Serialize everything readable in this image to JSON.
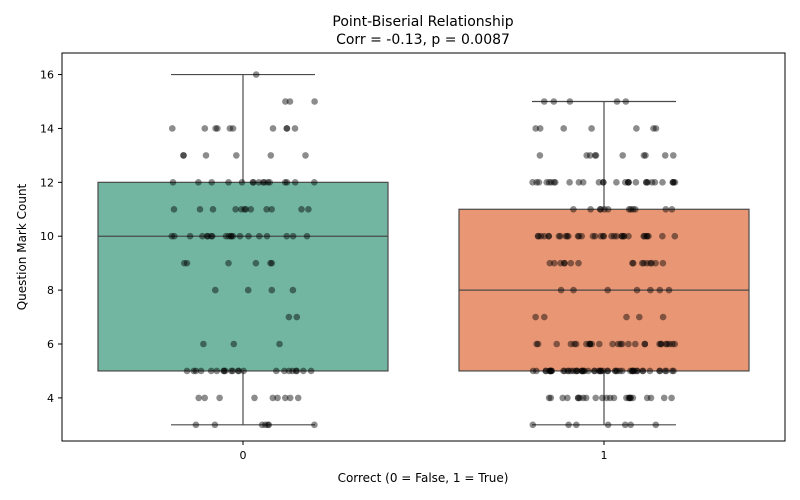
{
  "chart_data": {
    "type": "box",
    "title": "Point-Biserial Relationship",
    "subtitle": "Corr = -0.13, p = 0.0087",
    "xlabel": "Correct (0 = False, 1 = True)",
    "ylabel": "Question Mark Count",
    "categories": [
      "0",
      "1"
    ],
    "ylim": [
      2.4,
      16.8
    ],
    "yticks": [
      4,
      6,
      8,
      10,
      12,
      14,
      16
    ],
    "grid": false,
    "legend": "none",
    "box_colors": [
      "#72b6a1",
      "#e99675"
    ],
    "box_edge_color": "#4a4a4a",
    "point_color": "#000000",
    "boxes": [
      {
        "category": "0",
        "whisker_low": 3,
        "q1": 5,
        "median": 10,
        "q3": 12,
        "whisker_high": 16
      },
      {
        "category": "1",
        "whisker_low": 3,
        "q1": 5,
        "median": 8,
        "q3": 11,
        "whisker_high": 15
      }
    ],
    "points": [
      {
        "category": "0",
        "counts": {
          "3": 7,
          "4": 9,
          "5": 22,
          "6": 3,
          "7": 2,
          "8": 4,
          "9": 6,
          "10": 20,
          "11": 12,
          "12": 16,
          "13": 6,
          "14": 10,
          "15": 3,
          "16": 1
        }
      },
      {
        "category": "1",
        "counts": {
          "3": 7,
          "4": 24,
          "5": 55,
          "6": 28,
          "7": 5,
          "8": 7,
          "9": 16,
          "10": 34,
          "11": 12,
          "12": 30,
          "13": 10,
          "14": 7,
          "15": 5
        }
      }
    ]
  }
}
